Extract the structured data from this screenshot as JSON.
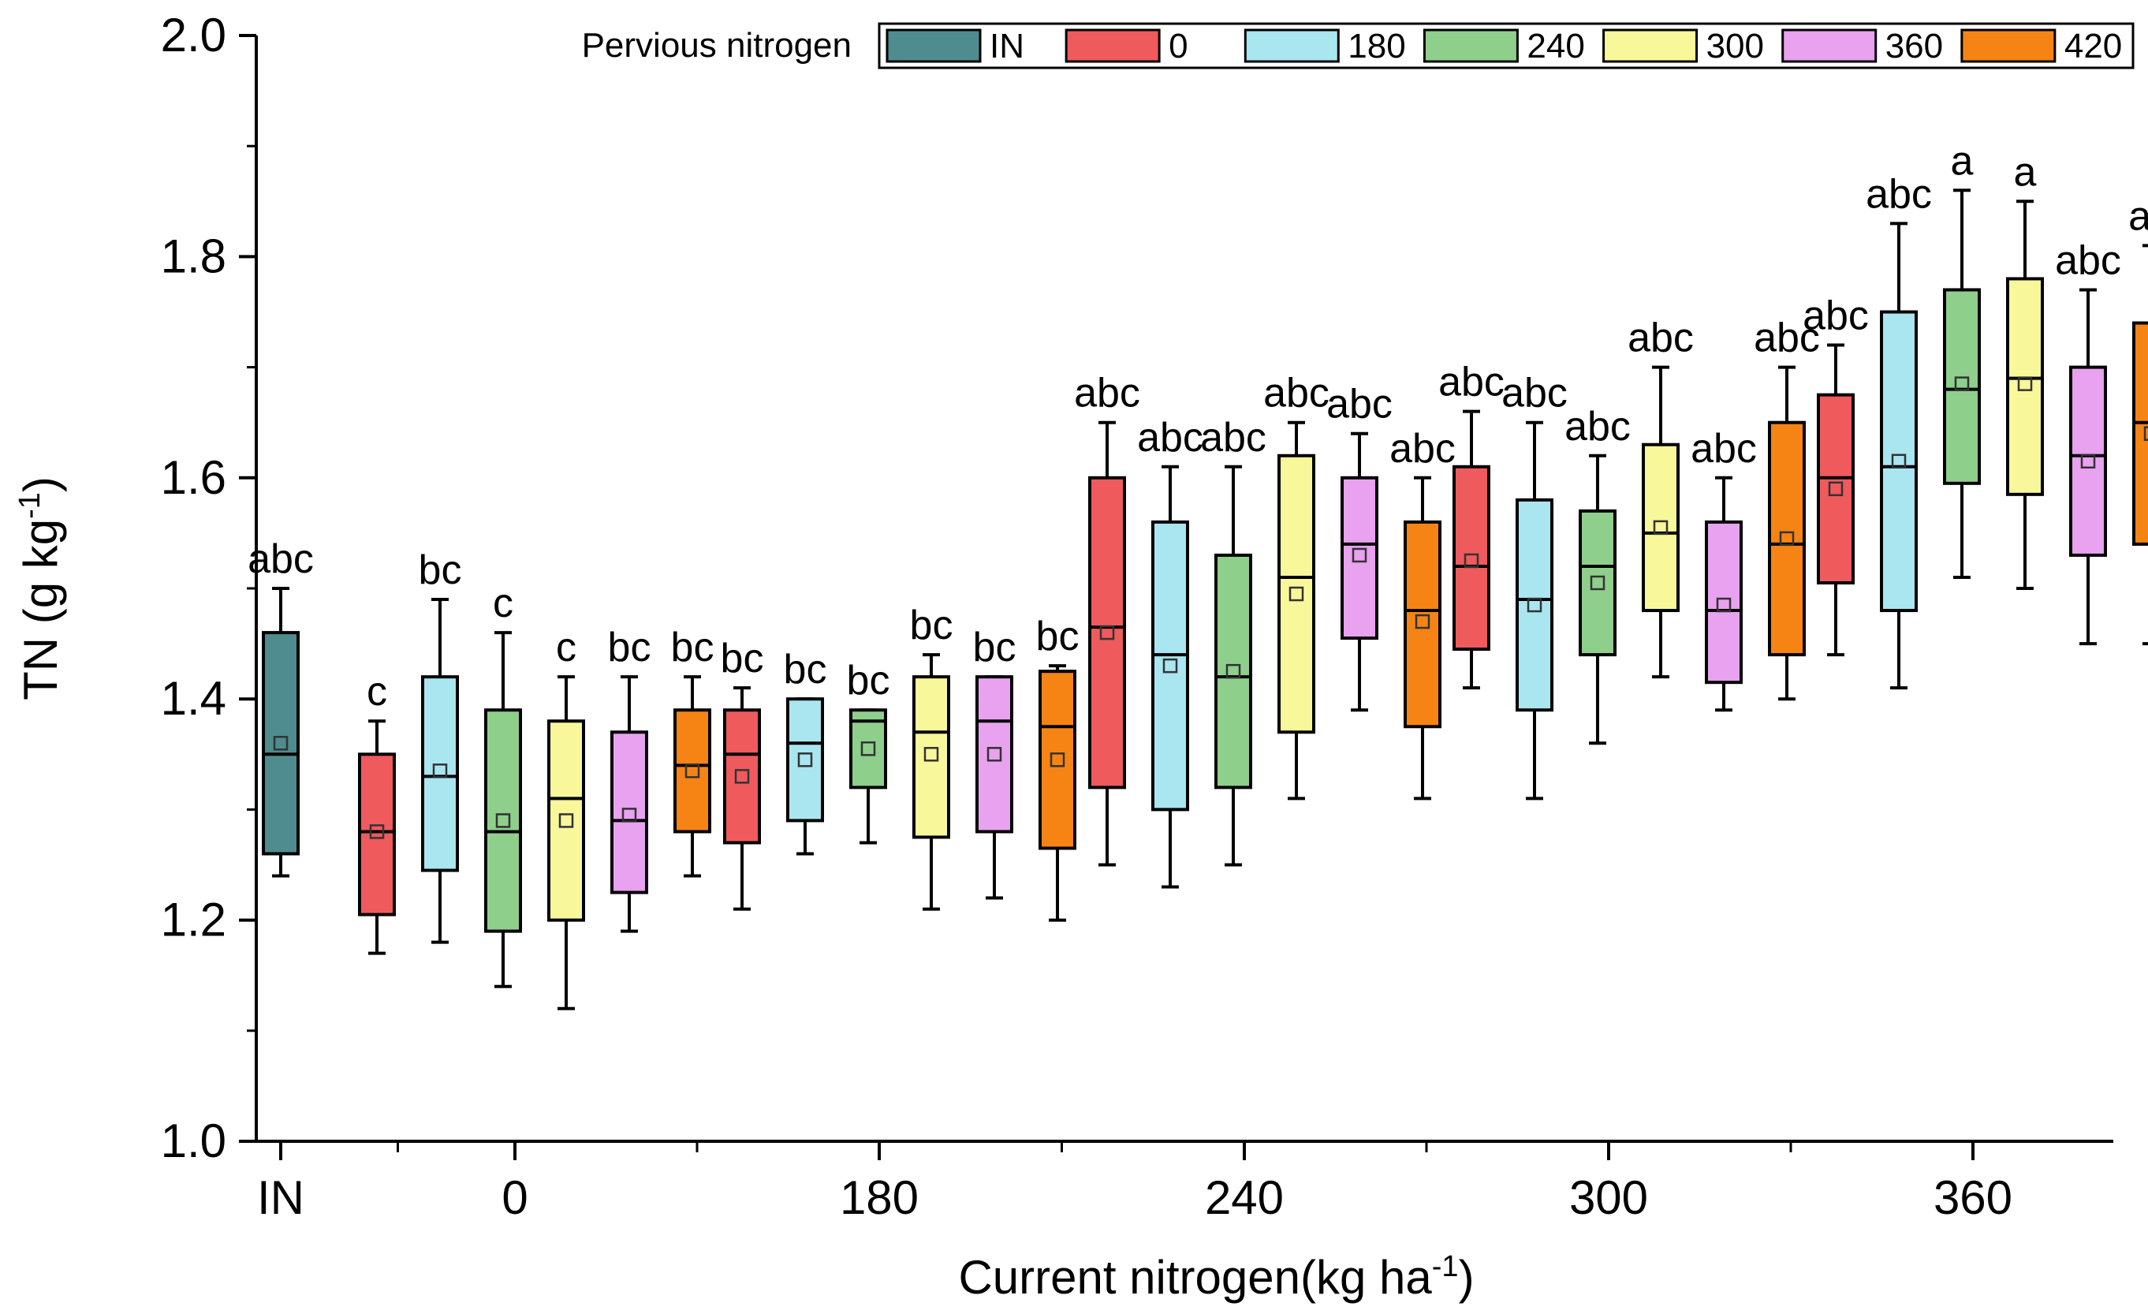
{
  "chart_data": {
    "type": "box",
    "ylabel": "TN (g kg",
    "ylabel_sup": "-1",
    "ylabel_close": ")",
    "xlabel": "Current nitrogen(kg ha",
    "xlabel_sup": "-1",
    "xlabel_close": ")",
    "ylim": [
      1.0,
      2.0
    ],
    "yticks": [
      "1.0",
      "1.2",
      "1.4",
      "1.6",
      "1.8",
      "2.0"
    ],
    "legend": {
      "title": "Pervious nitrogen",
      "entries": [
        {
          "label": "IN",
          "color": "#4f8c8f"
        },
        {
          "label": "0",
          "color": "#ef5a5d"
        },
        {
          "label": "180",
          "color": "#a9e6f0"
        },
        {
          "label": "240",
          "color": "#8ecf8c"
        },
        {
          "label": "300",
          "color": "#f8f79a"
        },
        {
          "label": "360",
          "color": "#e8a2ef"
        },
        {
          "label": "420",
          "color": "#f58414"
        }
      ]
    },
    "groups": [
      {
        "label": "IN",
        "boxes": [
          {
            "prev": "IN",
            "min": 1.24,
            "q1": 1.26,
            "median": 1.35,
            "q3": 1.46,
            "max": 1.5,
            "mean": 1.36,
            "sig": "abc"
          }
        ]
      },
      {
        "label": "0",
        "boxes": [
          {
            "prev": "0",
            "min": 1.17,
            "q1": 1.205,
            "median": 1.28,
            "q3": 1.35,
            "max": 1.38,
            "mean": 1.28,
            "sig": "c"
          },
          {
            "prev": "180",
            "min": 1.18,
            "q1": 1.245,
            "median": 1.33,
            "q3": 1.42,
            "max": 1.49,
            "mean": 1.335,
            "sig": "bc"
          },
          {
            "prev": "240",
            "min": 1.14,
            "q1": 1.19,
            "median": 1.28,
            "q3": 1.39,
            "max": 1.46,
            "mean": 1.29,
            "sig": "c"
          },
          {
            "prev": "300",
            "min": 1.12,
            "q1": 1.2,
            "median": 1.31,
            "q3": 1.38,
            "max": 1.42,
            "mean": 1.29,
            "sig": "c"
          },
          {
            "prev": "360",
            "min": 1.19,
            "q1": 1.225,
            "median": 1.29,
            "q3": 1.37,
            "max": 1.42,
            "mean": 1.295,
            "sig": "bc"
          },
          {
            "prev": "420",
            "min": 1.24,
            "q1": 1.28,
            "median": 1.34,
            "q3": 1.39,
            "max": 1.42,
            "mean": 1.335,
            "sig": "bc"
          }
        ]
      },
      {
        "label": "180",
        "boxes": [
          {
            "prev": "0",
            "min": 1.21,
            "q1": 1.27,
            "median": 1.35,
            "q3": 1.39,
            "max": 1.41,
            "mean": 1.33,
            "sig": "bc"
          },
          {
            "prev": "180",
            "min": 1.26,
            "q1": 1.29,
            "median": 1.36,
            "q3": 1.4,
            "max": 1.4,
            "mean": 1.345,
            "sig": "bc"
          },
          {
            "prev": "240",
            "min": 1.27,
            "q1": 1.32,
            "median": 1.38,
            "q3": 1.39,
            "max": 1.39,
            "mean": 1.355,
            "sig": "bc"
          },
          {
            "prev": "300",
            "min": 1.21,
            "q1": 1.275,
            "median": 1.37,
            "q3": 1.42,
            "max": 1.44,
            "mean": 1.35,
            "sig": "bc"
          },
          {
            "prev": "360",
            "min": 1.22,
            "q1": 1.28,
            "median": 1.38,
            "q3": 1.42,
            "max": 1.42,
            "mean": 1.35,
            "sig": "bc"
          },
          {
            "prev": "420",
            "min": 1.2,
            "q1": 1.265,
            "median": 1.375,
            "q3": 1.425,
            "max": 1.43,
            "mean": 1.345,
            "sig": "bc"
          }
        ]
      },
      {
        "label": "240",
        "boxes": [
          {
            "prev": "0",
            "min": 1.25,
            "q1": 1.32,
            "median": 1.465,
            "q3": 1.6,
            "max": 1.65,
            "mean": 1.46,
            "sig": "abc"
          },
          {
            "prev": "180",
            "min": 1.23,
            "q1": 1.3,
            "median": 1.44,
            "q3": 1.56,
            "max": 1.61,
            "mean": 1.43,
            "sig": "abc"
          },
          {
            "prev": "240",
            "min": 1.25,
            "q1": 1.32,
            "median": 1.42,
            "q3": 1.53,
            "max": 1.61,
            "mean": 1.425,
            "sig": "abc"
          },
          {
            "prev": "300",
            "min": 1.31,
            "q1": 1.37,
            "median": 1.51,
            "q3": 1.62,
            "max": 1.65,
            "mean": 1.495,
            "sig": "abc"
          },
          {
            "prev": "360",
            "min": 1.39,
            "q1": 1.455,
            "median": 1.54,
            "q3": 1.6,
            "max": 1.64,
            "mean": 1.53,
            "sig": "abc"
          },
          {
            "prev": "420",
            "min": 1.31,
            "q1": 1.375,
            "median": 1.48,
            "q3": 1.56,
            "max": 1.6,
            "mean": 1.47,
            "sig": "abc"
          }
        ]
      },
      {
        "label": "300",
        "boxes": [
          {
            "prev": "0",
            "min": 1.41,
            "q1": 1.445,
            "median": 1.52,
            "q3": 1.61,
            "max": 1.66,
            "mean": 1.525,
            "sig": "abc"
          },
          {
            "prev": "180",
            "min": 1.31,
            "q1": 1.39,
            "median": 1.49,
            "q3": 1.58,
            "max": 1.65,
            "mean": 1.485,
            "sig": "abc"
          },
          {
            "prev": "240",
            "min": 1.36,
            "q1": 1.44,
            "median": 1.52,
            "q3": 1.57,
            "max": 1.62,
            "mean": 1.505,
            "sig": "abc"
          },
          {
            "prev": "300",
            "min": 1.42,
            "q1": 1.48,
            "median": 1.55,
            "q3": 1.63,
            "max": 1.7,
            "mean": 1.555,
            "sig": "abc"
          },
          {
            "prev": "360",
            "min": 1.39,
            "q1": 1.415,
            "median": 1.48,
            "q3": 1.56,
            "max": 1.6,
            "mean": 1.485,
            "sig": "abc"
          },
          {
            "prev": "420",
            "min": 1.4,
            "q1": 1.44,
            "median": 1.54,
            "q3": 1.65,
            "max": 1.7,
            "mean": 1.545,
            "sig": "abc"
          }
        ]
      },
      {
        "label": "360",
        "boxes": [
          {
            "prev": "0",
            "min": 1.44,
            "q1": 1.505,
            "median": 1.6,
            "q3": 1.675,
            "max": 1.72,
            "mean": 1.59,
            "sig": "abc"
          },
          {
            "prev": "180",
            "min": 1.41,
            "q1": 1.48,
            "median": 1.61,
            "q3": 1.75,
            "max": 1.83,
            "mean": 1.615,
            "sig": "abc"
          },
          {
            "prev": "240",
            "min": 1.51,
            "q1": 1.595,
            "median": 1.68,
            "q3": 1.77,
            "max": 1.86,
            "mean": 1.685,
            "sig": "a"
          },
          {
            "prev": "300",
            "min": 1.5,
            "q1": 1.585,
            "median": 1.69,
            "q3": 1.78,
            "max": 1.85,
            "mean": 1.685,
            "sig": "a"
          },
          {
            "prev": "360",
            "min": 1.45,
            "q1": 1.53,
            "median": 1.62,
            "q3": 1.7,
            "max": 1.77,
            "mean": 1.615,
            "sig": "abc"
          },
          {
            "prev": "420",
            "min": 1.45,
            "q1": 1.54,
            "median": 1.65,
            "q3": 1.74,
            "max": 1.81,
            "mean": 1.64,
            "sig": "ab"
          }
        ]
      }
    ]
  }
}
